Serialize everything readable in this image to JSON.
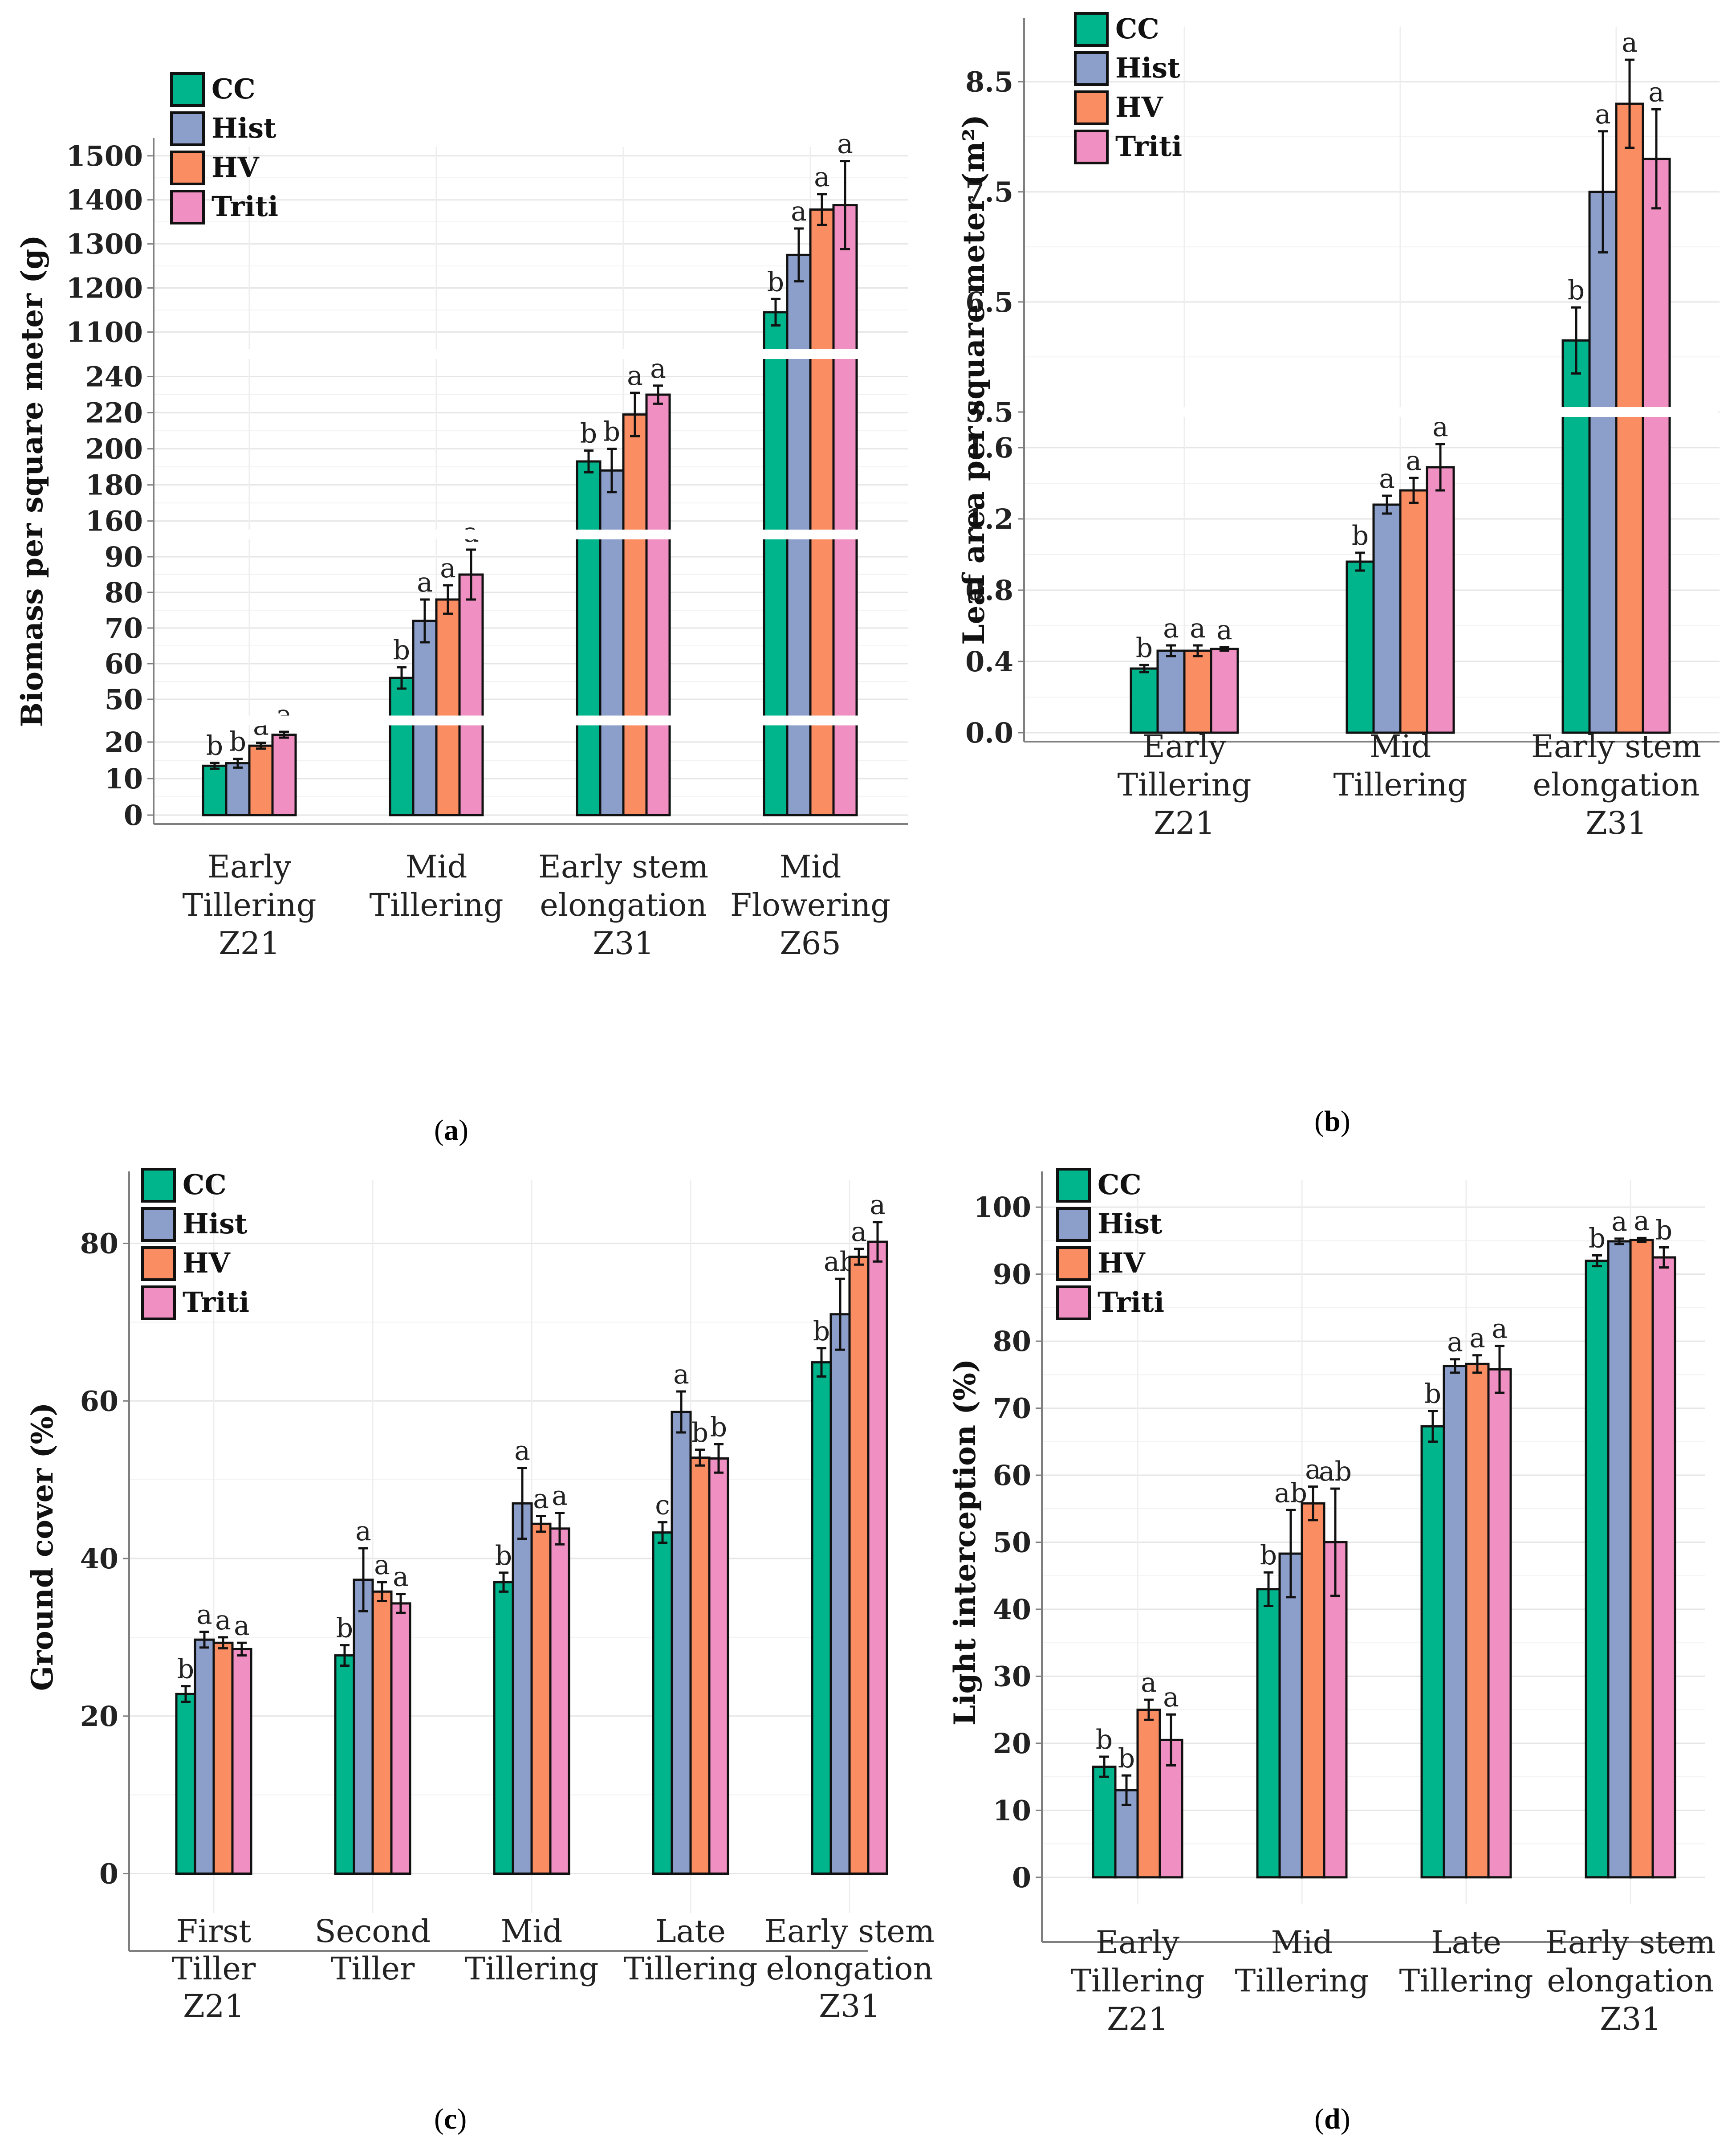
{
  "series_colors": {
    "CC": "#00B48C",
    "Hist": "#8C9FCB",
    "HV": "#FB8D62",
    "Triti": "#F090C2"
  },
  "captions": {
    "a": "a",
    "b": "b",
    "c": "c",
    "d": "d"
  },
  "chart_data": [
    {
      "id": "a",
      "type": "bar",
      "ylabel": "Biomass per square meter (g)",
      "legend": [
        "CC",
        "Hist",
        "HV",
        "Triti"
      ],
      "categories": [
        [
          "Early",
          "Tillering",
          "Z21"
        ],
        [
          "Mid",
          "Tillering"
        ],
        [
          "Early stem",
          "elongation",
          "Z31"
        ],
        [
          "Mid",
          "Flowering",
          "Z65"
        ]
      ],
      "axis_segments": [
        {
          "ylim": [
            0,
            25
          ],
          "ticks": [
            0,
            10,
            20
          ]
        },
        {
          "ylim": [
            45,
            95
          ],
          "ticks": [
            50,
            60,
            70,
            80,
            90
          ]
        },
        {
          "ylim": [
            155,
            250
          ],
          "ticks": [
            160,
            180,
            200,
            220,
            240
          ]
        },
        {
          "ylim": [
            1060,
            1520
          ],
          "ticks": [
            1100,
            1200,
            1300,
            1400,
            1500
          ]
        }
      ],
      "series": [
        {
          "name": "CC",
          "values": [
            13.5,
            56,
            193,
            1145
          ],
          "errors": [
            0.8,
            3,
            6,
            30
          ],
          "letters": [
            "b",
            "b",
            "b",
            "b"
          ]
        },
        {
          "name": "Hist",
          "values": [
            14.2,
            72,
            188,
            1275
          ],
          "errors": [
            1.2,
            6,
            12,
            60
          ],
          "letters": [
            "b",
            "a",
            "b",
            "a"
          ]
        },
        {
          "name": "HV",
          "values": [
            19,
            78,
            219,
            1378
          ],
          "errors": [
            0.8,
            4,
            12,
            35
          ],
          "letters": [
            "a",
            "a",
            "a",
            "a"
          ]
        },
        {
          "name": "Triti",
          "values": [
            22,
            85,
            230,
            1388
          ],
          "errors": [
            0.8,
            7,
            5,
            100
          ],
          "letters": [
            "a",
            "a",
            "a",
            "a"
          ]
        }
      ]
    },
    {
      "id": "b",
      "type": "bar",
      "ylabel": "Leaf area per square meter (m²)",
      "legend": [
        "CC",
        "Hist",
        "HV",
        "Triti"
      ],
      "categories": [
        [
          "Early",
          "Tillering",
          "Z21"
        ],
        [
          "Mid",
          "Tillering"
        ],
        [
          "Early stem",
          "elongation",
          "Z31"
        ]
      ],
      "axis_segments": [
        {
          "ylim": [
            0,
            1.8
          ],
          "ticks": [
            0.0,
            0.4,
            0.8,
            1.2,
            1.6
          ]
        },
        {
          "ylim": [
            5.5,
            9.0
          ],
          "ticks": [
            5.5,
            6.5,
            7.5,
            8.5
          ]
        }
      ],
      "series": [
        {
          "name": "CC",
          "values": [
            0.36,
            0.96,
            6.15
          ],
          "errors": [
            0.02,
            0.05,
            0.3
          ],
          "letters": [
            "b",
            "b",
            "b"
          ]
        },
        {
          "name": "Hist",
          "values": [
            0.46,
            1.28,
            7.5
          ],
          "errors": [
            0.03,
            0.05,
            0.55
          ],
          "letters": [
            "a",
            "a",
            "a"
          ]
        },
        {
          "name": "HV",
          "values": [
            0.46,
            1.36,
            8.3
          ],
          "errors": [
            0.03,
            0.07,
            0.4
          ],
          "letters": [
            "a",
            "a",
            "a"
          ]
        },
        {
          "name": "Triti",
          "values": [
            0.47,
            1.49,
            7.8
          ],
          "errors": [
            0.01,
            0.13,
            0.45
          ],
          "letters": [
            "a",
            "a",
            "a"
          ]
        }
      ]
    },
    {
      "id": "c",
      "type": "bar",
      "ylabel": "Ground cover (%)",
      "legend": [
        "CC",
        "Hist",
        "HV",
        "Triti"
      ],
      "categories": [
        [
          "First",
          "Tiller",
          "Z21"
        ],
        [
          "Second",
          "Tiller"
        ],
        [
          "Mid",
          "Tillering"
        ],
        [
          "Late",
          "Tillering"
        ],
        [
          "Early stem",
          "elongation",
          "Z31"
        ]
      ],
      "ylim": [
        -5,
        88
      ],
      "yticks": [
        0,
        20,
        40,
        60,
        80
      ],
      "series": [
        {
          "name": "CC",
          "values": [
            22.8,
            27.7,
            37,
            43.3,
            64.9
          ],
          "errors": [
            1,
            1.3,
            1.2,
            1.3,
            1.8
          ],
          "letters": [
            "b",
            "b",
            "b",
            "c",
            "b"
          ]
        },
        {
          "name": "Hist",
          "values": [
            29.7,
            37.3,
            47,
            58.6,
            71
          ],
          "errors": [
            1,
            4,
            4.5,
            2.6,
            4.5
          ],
          "letters": [
            "a",
            "a",
            "a",
            "a",
            "ab"
          ]
        },
        {
          "name": "HV",
          "values": [
            29.3,
            35.8,
            44.4,
            52.8,
            78.3
          ],
          "errors": [
            0.7,
            1.2,
            1,
            1,
            1
          ],
          "letters": [
            "a",
            "a",
            "a",
            "b",
            "a"
          ]
        },
        {
          "name": "Triti",
          "values": [
            28.5,
            34.3,
            43.8,
            52.7,
            80.2
          ],
          "errors": [
            0.8,
            1.2,
            2,
            1.8,
            2.5
          ],
          "letters": [
            "a",
            "a",
            "a",
            "b",
            "a"
          ]
        }
      ]
    },
    {
      "id": "d",
      "type": "bar",
      "ylabel": "Light interception (%)",
      "legend": [
        "CC",
        "Hist",
        "HV",
        "Triti"
      ],
      "categories": [
        [
          "Early",
          "Tillering",
          "Z21"
        ],
        [
          "Mid",
          "Tillering"
        ],
        [
          "Late",
          "Tillering"
        ],
        [
          "Early stem",
          "elongation",
          "Z31"
        ]
      ],
      "ylim": [
        -4,
        104
      ],
      "yticks": [
        0,
        10,
        20,
        30,
        40,
        50,
        60,
        70,
        80,
        90,
        100
      ],
      "series": [
        {
          "name": "CC",
          "values": [
            16.5,
            43,
            67.3,
            92
          ],
          "errors": [
            1.5,
            2.5,
            2.3,
            0.8
          ],
          "letters": [
            "b",
            "b",
            "b",
            "b"
          ]
        },
        {
          "name": "Hist",
          "values": [
            13,
            48.3,
            76.3,
            94.9
          ],
          "errors": [
            2.2,
            6.5,
            1,
            0.4
          ],
          "letters": [
            "b",
            "ab",
            "a",
            "a"
          ]
        },
        {
          "name": "HV",
          "values": [
            25,
            55.8,
            76.6,
            95.1
          ],
          "errors": [
            1.5,
            2.5,
            1.3,
            0.3
          ],
          "letters": [
            "a",
            "a",
            "a",
            "a"
          ]
        },
        {
          "name": "Triti",
          "values": [
            20.5,
            50,
            75.8,
            92.5
          ],
          "errors": [
            3.8,
            8,
            3.5,
            1.5
          ],
          "letters": [
            "a",
            "ab",
            "a",
            "b"
          ]
        }
      ]
    }
  ]
}
